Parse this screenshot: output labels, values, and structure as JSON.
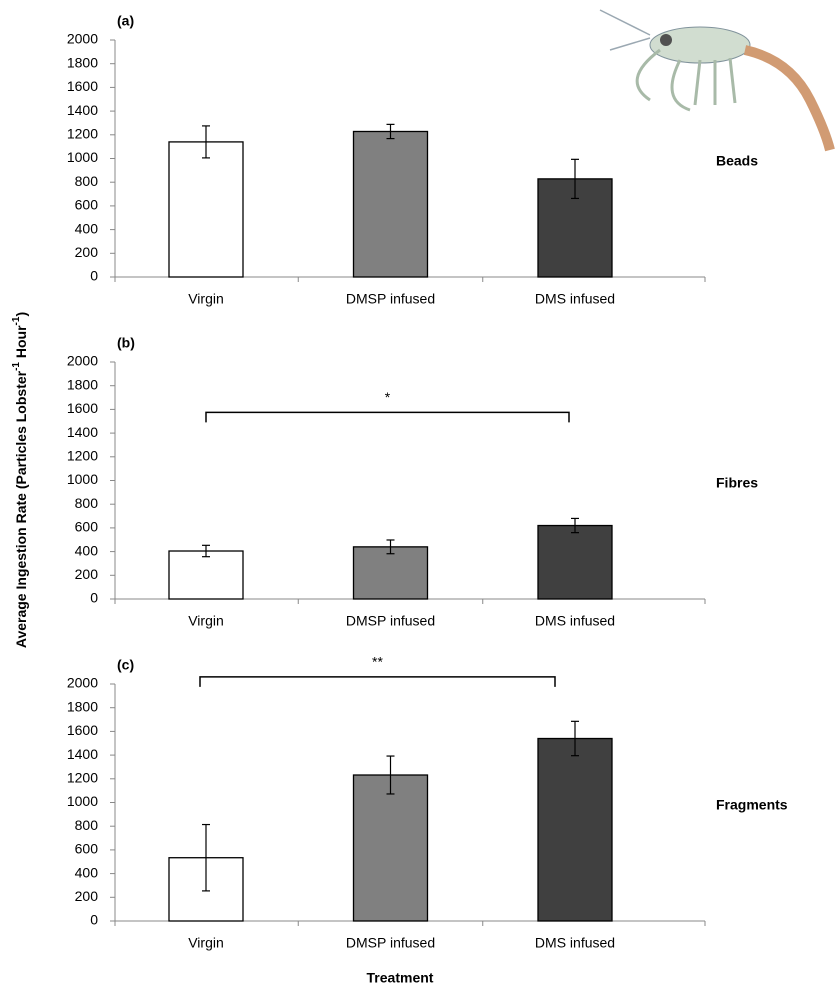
{
  "ylabel": [
    "Average Ingestion Rate (Particles Lobster",
    "-1",
    " Hour",
    "-1",
    ")"
  ],
  "xlabel": "Treatment",
  "chart_data": [
    {
      "type": "bar",
      "title": "(a)",
      "side_label": "Beads",
      "categories": [
        "Virgin",
        "DMSP infused",
        "DMS infused"
      ],
      "values": [
        1140,
        1228,
        828
      ],
      "errors": [
        135,
        60,
        165
      ],
      "colors": [
        "#ffffff",
        "#808080",
        "#404040"
      ],
      "ylim": [
        0,
        2000
      ],
      "yticks": [
        0,
        200,
        400,
        600,
        800,
        1000,
        1200,
        1400,
        1600,
        1800,
        2000
      ],
      "annotations": []
    },
    {
      "type": "bar",
      "title": "(b)",
      "side_label": "Fibres",
      "categories": [
        "Virgin",
        "DMSP infused",
        "DMS infused"
      ],
      "values": [
        405,
        440,
        620
      ],
      "errors": [
        48,
        58,
        60
      ],
      "colors": [
        "#ffffff",
        "#808080",
        "#404040"
      ],
      "ylim": [
        0,
        2000
      ],
      "yticks": [
        0,
        200,
        400,
        600,
        800,
        1000,
        1200,
        1400,
        1600,
        1800,
        2000
      ],
      "annotations": [
        {
          "text": "*",
          "y": 1575,
          "between": [
            "Virgin",
            "DMS infused"
          ]
        }
      ]
    },
    {
      "type": "bar",
      "title": "(c)",
      "side_label": "Fragments",
      "categories": [
        "Virgin",
        "DMSP infused",
        "DMS infused"
      ],
      "values": [
        534,
        1232,
        1540
      ],
      "errors": [
        280,
        160,
        145
      ],
      "colors": [
        "#ffffff",
        "#808080",
        "#404040"
      ],
      "ylim": [
        0,
        2000
      ],
      "yticks": [
        0,
        200,
        400,
        600,
        800,
        1000,
        1200,
        1400,
        1600,
        1800,
        2000
      ],
      "annotations": [
        {
          "text": "**",
          "y": 2060,
          "between": [
            "Virgin",
            "DMS infused"
          ]
        }
      ]
    }
  ]
}
